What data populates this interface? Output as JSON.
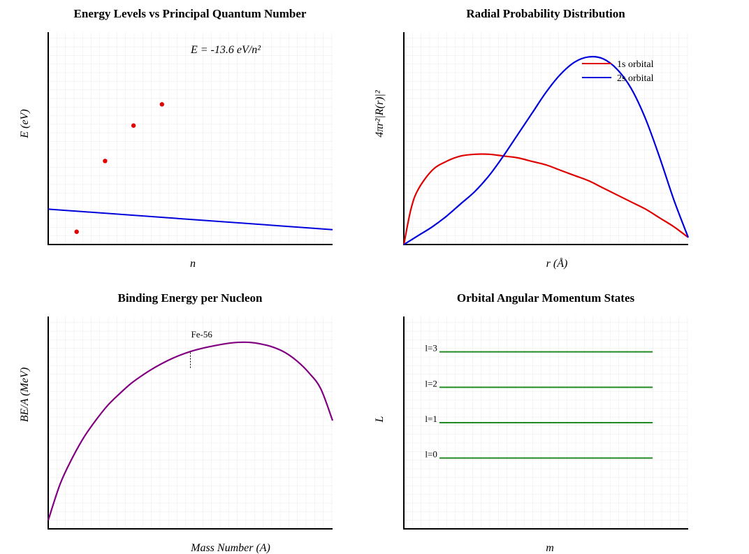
{
  "chart_data": [
    {
      "id": "energy",
      "type": "scatter",
      "title": "Energy Levels vs Principal Quantum Number",
      "xlabel": "n",
      "ylabel": "E (eV)",
      "xlim": [
        0,
        10
      ],
      "ylim": [
        -14.5,
        0.5
      ],
      "grid": true,
      "annotation": "E = -13.6 eV/n²",
      "series": [
        {
          "kind": "scatter",
          "color": "#e00000",
          "x": [
            1,
            2,
            3,
            4
          ],
          "y": [
            -13.6,
            -8.6,
            -6.1,
            -4.6
          ]
        },
        {
          "kind": "line",
          "color": "#0000dd",
          "x": [
            0,
            10
          ],
          "y": [
            -12.0,
            -13.45
          ]
        }
      ]
    },
    {
      "id": "radial",
      "type": "line",
      "title": "Radial Probability Distribution",
      "xlabel": "r (Å)",
      "ylabel": "4πr²|R(r)|²",
      "xlim": [
        0,
        10
      ],
      "ylim": [
        0,
        1.2
      ],
      "grid": true,
      "legend": "top-right",
      "series": [
        {
          "name": "1s orbital",
          "color": "#e00000",
          "x": [
            0,
            0.25,
            0.5,
            1,
            1.5,
            2,
            2.5,
            3,
            3.5,
            4,
            4.5,
            5,
            5.5,
            6,
            6.5,
            7,
            7.5,
            8,
            8.5,
            9,
            9.5,
            10
          ],
          "y": [
            0,
            0.2,
            0.31,
            0.42,
            0.47,
            0.5,
            0.51,
            0.51,
            0.5,
            0.49,
            0.47,
            0.45,
            0.42,
            0.39,
            0.36,
            0.32,
            0.28,
            0.24,
            0.2,
            0.15,
            0.1,
            0.04
          ]
        },
        {
          "name": "2s orbital",
          "color": "#0000dd",
          "x": [
            0,
            0.5,
            1,
            1.5,
            2,
            2.5,
            3,
            3.5,
            4,
            4.5,
            5,
            5.5,
            6,
            6.5,
            7,
            7.5,
            8,
            8.5,
            9,
            9.5,
            10
          ],
          "y": [
            0,
            0.05,
            0.1,
            0.16,
            0.23,
            0.3,
            0.39,
            0.5,
            0.62,
            0.74,
            0.86,
            0.96,
            1.03,
            1.06,
            1.05,
            0.99,
            0.88,
            0.71,
            0.49,
            0.25,
            0.04
          ]
        }
      ]
    },
    {
      "id": "binding",
      "type": "line",
      "title": "Binding Energy per Nucleon",
      "xlabel": "Mass Number (A)",
      "ylabel": "BE/A (MeV)",
      "xlim": [
        0,
        240
      ],
      "ylim": [
        0,
        10
      ],
      "grid": true,
      "annotation": {
        "label": "Fe-56",
        "x": 120,
        "y_top": 8.3,
        "y_bottom": 7.8
      },
      "series": [
        {
          "color": "#800080",
          "x": [
            0,
            10,
            20,
            30,
            40,
            50,
            60,
            70,
            80,
            90,
            100,
            110,
            120,
            130,
            140,
            150,
            160,
            170,
            180,
            190,
            200,
            210,
            220,
            230,
            240
          ],
          "y": [
            0.4,
            2.1,
            3.3,
            4.3,
            5.1,
            5.8,
            6.35,
            6.85,
            7.25,
            7.6,
            7.9,
            8.15,
            8.35,
            8.5,
            8.62,
            8.72,
            8.78,
            8.78,
            8.7,
            8.55,
            8.3,
            7.9,
            7.35,
            6.6,
            5.1
          ]
        }
      ]
    },
    {
      "id": "angular",
      "type": "line",
      "title": "Orbital Angular Momentum States",
      "xlabel": "m",
      "ylabel": "L",
      "xlim": [
        -4,
        4
      ],
      "ylim": [
        -1,
        5
      ],
      "grid": true,
      "series": [
        {
          "name": "l=0",
          "color": "#228b22",
          "x": [
            -3,
            3
          ],
          "y": [
            1,
            1
          ]
        },
        {
          "name": "l=1",
          "color": "#228b22",
          "x": [
            -3,
            3
          ],
          "y": [
            2,
            2
          ]
        },
        {
          "name": "l=2",
          "color": "#228b22",
          "x": [
            -3,
            3
          ],
          "y": [
            3,
            3
          ]
        },
        {
          "name": "l=3",
          "color": "#228b22",
          "x": [
            -3,
            3
          ],
          "y": [
            4,
            4
          ]
        }
      ]
    }
  ]
}
